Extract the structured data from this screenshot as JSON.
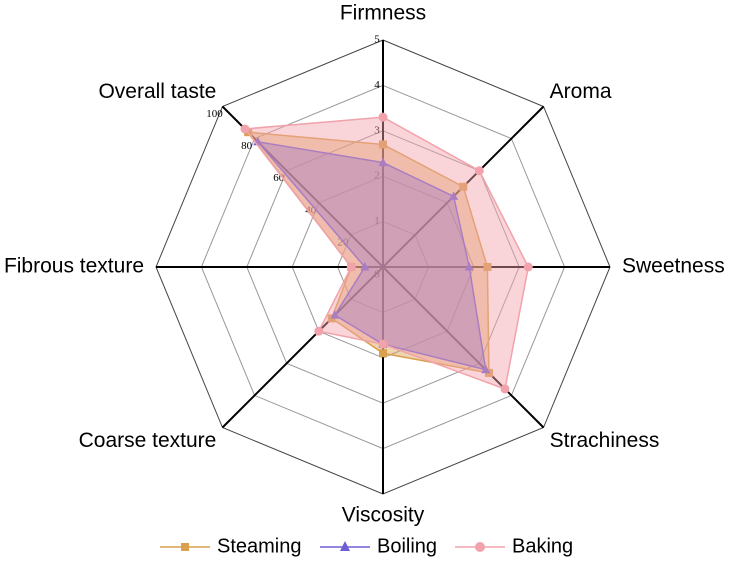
{
  "chart_data": {
    "type": "radar",
    "axes": [
      "Firmness",
      "Aroma",
      "Sweetness",
      "Strachiness",
      "Viscosity",
      "Coarse texture",
      "Fibrous texture",
      "Overall taste"
    ],
    "rlim": [
      0,
      5
    ],
    "rticks": [
      0,
      1,
      2,
      3,
      4,
      5
    ],
    "r2lim": [
      0,
      100
    ],
    "r2ticks": [
      20,
      40,
      60,
      80,
      100
    ],
    "r2_axis_index": 7,
    "grid": true,
    "series": [
      {
        "name": "Steaming",
        "color": "#d9a04e",
        "values": [
          2.7,
          2.5,
          2.3,
          3.3,
          1.9,
          1.6,
          0.7,
          84
        ]
      },
      {
        "name": "Boiling",
        "color": "#6f5fd6",
        "values": [
          2.3,
          2.2,
          1.9,
          3.2,
          1.7,
          1.5,
          0.4,
          78
        ]
      },
      {
        "name": "Baking",
        "color": "#f2a2aa",
        "values": [
          3.3,
          3.0,
          3.2,
          3.8,
          1.7,
          2.0,
          0.7,
          86
        ]
      }
    ]
  }
}
